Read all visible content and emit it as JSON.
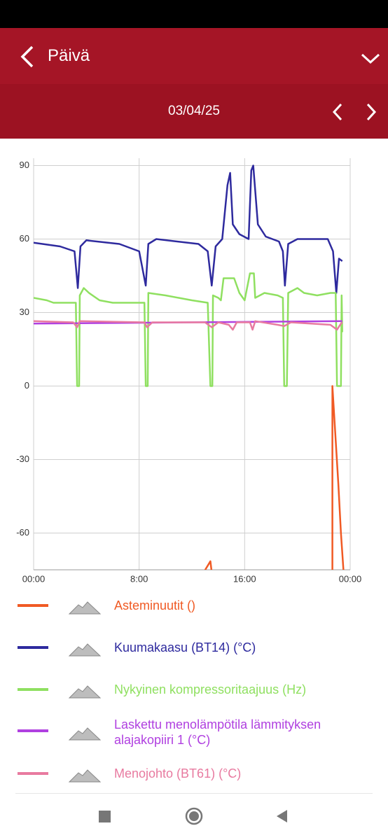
{
  "header": {
    "title": "Päivä",
    "date": "03/04/25"
  },
  "chart_data": {
    "type": "line",
    "xlim": [
      0,
      24
    ],
    "ylim": [
      -75,
      93
    ],
    "xticks": [
      {
        "value": 0,
        "label": "00:00"
      },
      {
        "value": 8,
        "label": "8:00"
      },
      {
        "value": 16,
        "label": "16:00"
      },
      {
        "value": 24,
        "label": "00:00"
      }
    ],
    "yticks": [
      90,
      60,
      30,
      0,
      -30,
      -60
    ],
    "grid": true,
    "series": [
      {
        "name": "Asteminuutit ()",
        "color": "#f05a24",
        "x": [
          12.9,
          13.4,
          13.5,
          null,
          22.65,
          22.65,
          23.1,
          23.3,
          23.5
        ],
        "values": [
          -76,
          -71.5,
          -76,
          null,
          -76,
          0,
          -40,
          -60,
          -76
        ]
      },
      {
        "name": "Kuumakaasu (BT14) (°C)",
        "color": "#2e2a9e",
        "x": [
          0,
          2,
          3.1,
          3.35,
          3.55,
          4,
          6.5,
          8,
          8.5,
          8.7,
          9.3,
          12.5,
          13.2,
          13.5,
          13.8,
          14.3,
          14.7,
          14.9,
          15.1,
          15.6,
          16.3,
          16.5,
          16.65,
          17.0,
          17.6,
          18.6,
          18.9,
          19.05,
          19.3,
          20,
          22.3,
          22.7,
          22.95,
          23.15,
          23.4
        ],
        "values": [
          58.5,
          57,
          55,
          40,
          57,
          59.5,
          58,
          55,
          41,
          58,
          60,
          58,
          55,
          41,
          57,
          60,
          82,
          87,
          66,
          62,
          60,
          88,
          90,
          66,
          61,
          59,
          55,
          41,
          58,
          60,
          60,
          55,
          38,
          52,
          51
        ]
      },
      {
        "name": "Nykyinen kompressoritaajuus (Hz)",
        "color": "#8fe060",
        "x": [
          0,
          1,
          1.5,
          3.2,
          3.3,
          3.45,
          3.5,
          3.8,
          4.2,
          5,
          6,
          8.4,
          8.5,
          8.65,
          8.7,
          10,
          11,
          12,
          13.2,
          13.4,
          13.55,
          13.6,
          14,
          14.2,
          14.4,
          15.2,
          15.6,
          16.0,
          16.4,
          16.7,
          16.8,
          17.5,
          18.5,
          18.9,
          19.0,
          19.2,
          19.3,
          20,
          20.5,
          21.5,
          22.5,
          22.9,
          23.0,
          23.3,
          23.35,
          23.4
        ],
        "values": [
          36,
          35,
          34,
          34,
          0,
          0,
          37,
          40,
          38,
          35,
          34,
          34,
          0,
          0,
          38,
          37,
          36,
          35,
          34,
          0,
          0,
          37,
          36,
          35,
          44,
          44,
          38,
          35,
          46,
          46,
          36,
          38,
          37,
          36,
          0,
          0,
          38,
          40,
          38,
          37,
          38,
          38,
          0,
          0,
          37,
          22
        ]
      },
      {
        "name": "Laskettu menolämpötila lämmityksen alajakopiiri 1 (°C)",
        "color": "#b040e0",
        "x": [
          0,
          23.4
        ],
        "values": [
          25.5,
          26.5
        ]
      },
      {
        "name": "Menojohto (BT61) (°C)",
        "color": "#e87aa0",
        "x": [
          0,
          3,
          3.3,
          3.5,
          8.4,
          8.6,
          9,
          13,
          13.5,
          14,
          14.8,
          15.1,
          15.4,
          16.4,
          16.6,
          16.8,
          18.5,
          19,
          19.5,
          22.5,
          23,
          23.3,
          23.4
        ],
        "values": [
          26.5,
          26,
          24,
          26.5,
          26,
          24,
          26,
          26,
          24,
          26,
          25,
          23,
          26,
          26,
          23,
          26.5,
          25,
          24.5,
          26,
          25,
          23,
          25.5,
          26
        ]
      }
    ]
  }
}
